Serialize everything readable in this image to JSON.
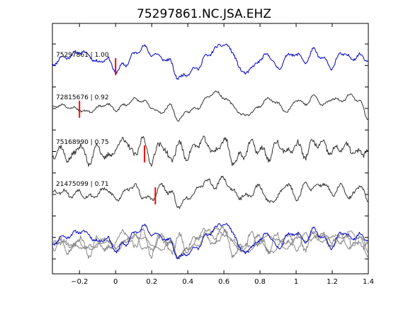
{
  "chart_data": {
    "type": "line",
    "title": "75297861.NC.JSA.EHZ",
    "xlabel": "",
    "ylabel": "",
    "xlim": [
      -0.35,
      1.4
    ],
    "x_ticks": [
      -0.2,
      0,
      0.2,
      0.4,
      0.6,
      0.8,
      1,
      1.2,
      1.4
    ],
    "x_tick_labels": [
      "−0.2",
      "0",
      "0.2",
      "0.4",
      "0.6",
      "0.8",
      "1",
      "1.2",
      "1.4"
    ],
    "grid": false,
    "legend": "none",
    "colors": {
      "reference": "#0000cc",
      "match": "#333333",
      "overlay": "#888888",
      "pick": "#ff0000"
    },
    "series": [
      {
        "name": "75297861 | 1.00",
        "id": "75297861",
        "correlation": 1.0,
        "pick_time": 0.0,
        "offset": 0.0,
        "color": "#0000cc",
        "seed": 11,
        "amplitude": 0.15,
        "x": [
          -0.35,
          -0.3,
          -0.25,
          -0.2,
          -0.15,
          -0.1,
          -0.05,
          0.0,
          0.05,
          0.1,
          0.15,
          0.2,
          0.25,
          0.3,
          0.35,
          0.4,
          0.45,
          0.5,
          0.55,
          0.6,
          0.65,
          0.7,
          0.75,
          0.8,
          0.85,
          0.9,
          0.95,
          1.0,
          1.05,
          1.1,
          1.15,
          1.2,
          1.25,
          1.3,
          1.35,
          1.4
        ],
        "values": [
          0.0,
          0.25,
          0.35,
          0.55,
          0.4,
          0.05,
          0.25,
          -0.3,
          -0.05,
          0.4,
          0.75,
          0.45,
          0.3,
          0.1,
          -0.65,
          -0.4,
          -0.2,
          0.3,
          0.65,
          0.9,
          0.5,
          -0.4,
          -0.25,
          0.2,
          0.4,
          -0.25,
          0.35,
          0.45,
          0.1,
          0.6,
          0.2,
          -0.15,
          0.5,
          0.25,
          0.35,
          0.2
        ]
      },
      {
        "name": "72815676 | 0.92",
        "id": "72815676",
        "correlation": 0.92,
        "pick_time": -0.2,
        "offset": 0.0,
        "color": "#333333",
        "seed": 23,
        "amplitude": 0.1,
        "x": [
          -0.35,
          -0.3,
          -0.25,
          -0.2,
          -0.15,
          -0.1,
          -0.05,
          0.0,
          0.05,
          0.1,
          0.15,
          0.2,
          0.25,
          0.3,
          0.35,
          0.4,
          0.45,
          0.5,
          0.55,
          0.6,
          0.65,
          0.7,
          0.75,
          0.8,
          0.85,
          0.9,
          0.95,
          1.0,
          1.05,
          1.1,
          1.15,
          1.2,
          1.25,
          1.3,
          1.35,
          1.4
        ],
        "values": [
          0.0,
          0.05,
          -0.05,
          -0.15,
          -0.25,
          -0.05,
          0.1,
          -0.15,
          0.05,
          0.3,
          0.25,
          -0.05,
          -0.3,
          0.05,
          -0.6,
          -0.2,
          -0.1,
          0.35,
          0.65,
          0.4,
          0.05,
          -0.4,
          -0.3,
          0.05,
          0.35,
          0.1,
          -0.25,
          0.3,
          0.1,
          0.45,
          0.05,
          0.35,
          0.25,
          0.5,
          0.25,
          -0.55
        ]
      },
      {
        "name": "75168990 | 0.75",
        "id": "75168990",
        "correlation": 0.75,
        "pick_time": 0.16,
        "offset": 0.0,
        "color": "#333333",
        "seed": 37,
        "amplitude": 0.28,
        "x": [
          -0.35,
          -0.3,
          -0.25,
          -0.2,
          -0.15,
          -0.1,
          -0.05,
          0.0,
          0.05,
          0.1,
          0.15,
          0.2,
          0.25,
          0.3,
          0.35,
          0.4,
          0.45,
          0.5,
          0.55,
          0.6,
          0.65,
          0.7,
          0.75,
          0.8,
          0.85,
          0.9,
          0.95,
          1.0,
          1.05,
          1.1,
          1.15,
          1.2,
          1.25,
          1.3,
          1.35,
          1.4
        ],
        "values": [
          -0.1,
          0.05,
          -0.4,
          0.3,
          -0.5,
          0.2,
          -0.35,
          0.1,
          0.55,
          -0.2,
          0.5,
          -0.45,
          0.4,
          -0.4,
          0.25,
          -0.25,
          0.35,
          0.4,
          -0.1,
          0.55,
          -0.45,
          -0.2,
          0.3,
          0.05,
          -0.25,
          0.35,
          -0.1,
          0.3,
          -0.15,
          0.4,
          0.25,
          -0.05,
          0.2,
          0.1,
          -0.15,
          0.1
        ]
      },
      {
        "name": "21475099 | 0.71",
        "id": "21475099",
        "correlation": 0.71,
        "pick_time": 0.22,
        "offset": 0.0,
        "color": "#333333",
        "seed": 53,
        "amplitude": 0.18,
        "x": [
          -0.35,
          -0.3,
          -0.25,
          -0.2,
          -0.15,
          -0.1,
          -0.05,
          0.0,
          0.05,
          0.1,
          0.15,
          0.2,
          0.25,
          0.3,
          0.35,
          0.4,
          0.45,
          0.5,
          0.55,
          0.6,
          0.65,
          0.7,
          0.75,
          0.8,
          0.85,
          0.9,
          0.95,
          1.0,
          1.05,
          1.1,
          1.15,
          1.2,
          1.25,
          1.3,
          1.35,
          1.4
        ],
        "values": [
          0.0,
          0.1,
          -0.1,
          0.05,
          -0.2,
          -0.05,
          0.2,
          -0.3,
          0.05,
          0.35,
          -0.15,
          -0.3,
          0.3,
          0.05,
          -0.55,
          -0.25,
          0.1,
          0.55,
          0.3,
          0.65,
          0.05,
          -0.2,
          -0.05,
          0.3,
          -0.45,
          -0.15,
          0.45,
          -0.25,
          0.35,
          0.2,
          0.45,
          -0.05,
          0.3,
          -0.25,
          0.35,
          -0.4
        ]
      }
    ],
    "overlay": {
      "description_of_traces": "all four traces aligned and stacked in the bottom panel",
      "reference_color": "#0000cc",
      "other_color": "#888888"
    }
  }
}
